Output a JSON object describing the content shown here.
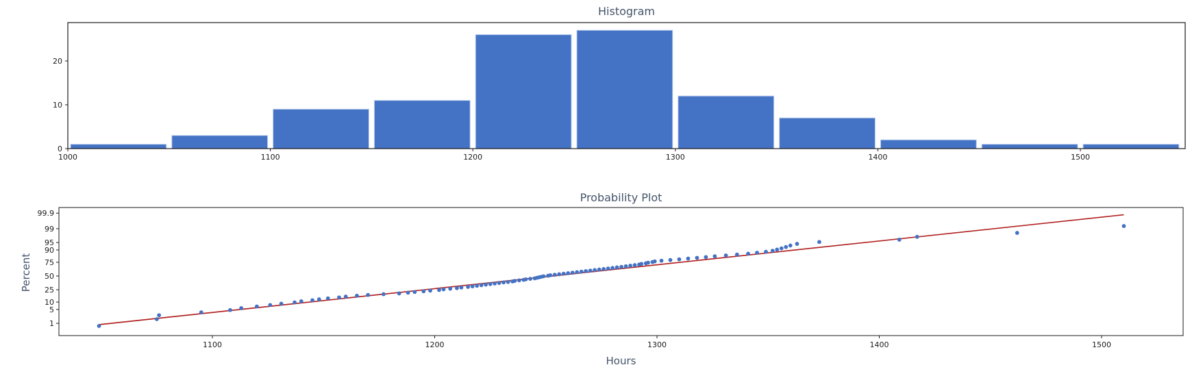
{
  "histogram": {
    "title": "Histogram"
  },
  "probability_plot": {
    "title": "Probability Plot",
    "xlabel": "Hours",
    "ylabel": "Percent"
  },
  "colors": {
    "bar": "#4472C4",
    "bar_edge": "#BCD0EE",
    "point": "#4472C4",
    "fit_line": "#B22222",
    "axis": "#1a1a1a",
    "title_text": "#44546A"
  },
  "chart_data": [
    {
      "type": "bar",
      "title": "Histogram",
      "xlabel": "",
      "ylabel": "",
      "bin_start": 1000,
      "bin_width": 50,
      "counts": [
        1,
        3,
        9,
        11,
        26,
        27,
        12,
        7,
        2,
        1,
        1
      ],
      "x_ticks": [
        1000,
        1100,
        1200,
        1300,
        1400,
        1500
      ],
      "y_ticks": [
        0,
        10,
        20
      ],
      "xlim": [
        1000,
        1552
      ],
      "ylim": [
        0,
        28.75
      ],
      "grid": false,
      "legend": "none"
    },
    {
      "type": "scatter",
      "title": "Probability Plot",
      "xlabel": "Hours",
      "ylabel": "Percent",
      "y_scale": "normal-probability",
      "x_ticks": [
        1100,
        1200,
        1300,
        1400,
        1500
      ],
      "y_tick_labels": [
        "99.9",
        "99",
        "95",
        "90",
        "75",
        "50",
        "25",
        "10",
        "5",
        "1"
      ],
      "y_tick_percents": [
        99.9,
        99,
        95,
        90,
        75,
        50,
        25,
        10,
        5,
        1
      ],
      "xlim": [
        1031,
        1537
      ],
      "ylim_percent": [
        0.17,
        99.96
      ],
      "grid": false,
      "legend": "none",
      "fit_line": {
        "x1": 1049,
        "percent1": 0.84,
        "x2": 1510,
        "percent2": 99.87,
        "mean": 1256,
        "stdev": 85
      },
      "points": [
        [
          1049,
          0.7
        ],
        [
          1075,
          1.7
        ],
        [
          1076,
          2.7
        ],
        [
          1095,
          3.7
        ],
        [
          1108,
          4.7
        ],
        [
          1113,
          5.7
        ],
        [
          1120,
          6.7
        ],
        [
          1126,
          7.7
        ],
        [
          1131,
          8.7
        ],
        [
          1137,
          9.7
        ],
        [
          1140,
          10.7
        ],
        [
          1145,
          11.7
        ],
        [
          1148,
          12.6
        ],
        [
          1152,
          13.6
        ],
        [
          1157,
          14.6
        ],
        [
          1160,
          15.6
        ],
        [
          1165,
          16.6
        ],
        [
          1170,
          17.6
        ],
        [
          1177,
          18.6
        ],
        [
          1184,
          19.6
        ],
        [
          1188,
          20.6
        ],
        [
          1191,
          21.6
        ],
        [
          1195,
          22.6
        ],
        [
          1198,
          23.6
        ],
        [
          1202,
          24.6
        ],
        [
          1204,
          25.6
        ],
        [
          1207,
          26.6
        ],
        [
          1210,
          27.6
        ],
        [
          1212,
          28.6
        ],
        [
          1215,
          29.6
        ],
        [
          1217,
          30.6
        ],
        [
          1219,
          31.6
        ],
        [
          1221,
          32.6
        ],
        [
          1223,
          33.6
        ],
        [
          1225,
          34.6
        ],
        [
          1227,
          35.6
        ],
        [
          1229,
          36.6
        ],
        [
          1231,
          37.6
        ],
        [
          1233,
          38.5
        ],
        [
          1235,
          39.5
        ],
        [
          1236,
          40.5
        ],
        [
          1238,
          41.5
        ],
        [
          1240,
          42.5
        ],
        [
          1241,
          43.5
        ],
        [
          1243,
          44.5
        ],
        [
          1245,
          45.5
        ],
        [
          1246,
          46.5
        ],
        [
          1247,
          47.5
        ],
        [
          1248,
          48.5
        ],
        [
          1249,
          49.5
        ],
        [
          1251,
          50.5
        ],
        [
          1252,
          51.5
        ],
        [
          1254,
          52.5
        ],
        [
          1256,
          53.5
        ],
        [
          1258,
          54.5
        ],
        [
          1260,
          55.5
        ],
        [
          1262,
          56.5
        ],
        [
          1264,
          57.5
        ],
        [
          1266,
          58.5
        ],
        [
          1268,
          59.5
        ],
        [
          1270,
          60.5
        ],
        [
          1272,
          61.5
        ],
        [
          1274,
          62.5
        ],
        [
          1276,
          63.4
        ],
        [
          1278,
          64.4
        ],
        [
          1280,
          65.4
        ],
        [
          1282,
          66.4
        ],
        [
          1284,
          67.4
        ],
        [
          1286,
          68.4
        ],
        [
          1288,
          69.4
        ],
        [
          1290,
          70.4
        ],
        [
          1292,
          71.4
        ],
        [
          1293,
          72.4
        ],
        [
          1295,
          73.4
        ],
        [
          1296,
          74.4
        ],
        [
          1298,
          75.4
        ],
        [
          1299,
          76.4
        ],
        [
          1302,
          77.4
        ],
        [
          1306,
          78.4
        ],
        [
          1310,
          79.4
        ],
        [
          1314,
          80.4
        ],
        [
          1318,
          81.4
        ],
        [
          1322,
          82.4
        ],
        [
          1326,
          83.4
        ],
        [
          1331,
          84.4
        ],
        [
          1336,
          85.4
        ],
        [
          1341,
          86.4
        ],
        [
          1345,
          87.4
        ],
        [
          1349,
          88.3
        ],
        [
          1352,
          89.3
        ],
        [
          1354,
          90.3
        ],
        [
          1356,
          91.3
        ],
        [
          1358,
          92.3
        ],
        [
          1360,
          93.3
        ],
        [
          1363,
          94.3
        ],
        [
          1373,
          95.3
        ],
        [
          1409,
          96.3
        ],
        [
          1417,
          97.3
        ],
        [
          1462,
          98.3
        ],
        [
          1510,
          99.3
        ]
      ]
    }
  ]
}
